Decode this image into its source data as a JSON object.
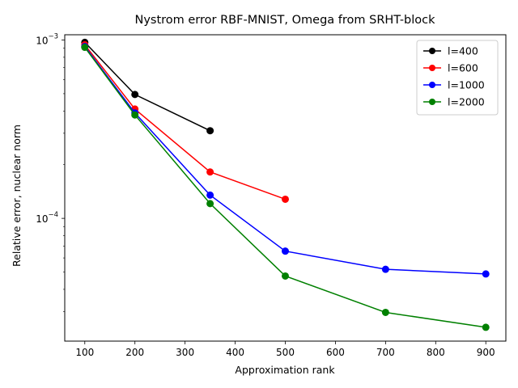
{
  "chart_data": {
    "type": "line",
    "title": "Nystrom error RBF-MNIST, Omega from SRHT-block",
    "xlabel": "Approximation rank",
    "ylabel": "Relative error, nuclear norm",
    "xlim": [
      60,
      940
    ],
    "ylim": [
      2.05e-05,
      0.00107
    ],
    "yscale": "log",
    "x_ticks": [
      100,
      200,
      300,
      400,
      500,
      600,
      700,
      800,
      900
    ],
    "y_ticks": [
      {
        "value": 0.0001,
        "base": "10",
        "exp": "−4"
      },
      {
        "value": 0.001,
        "base": "10",
        "exp": "−3"
      }
    ],
    "legend_position": "top-right",
    "series": [
      {
        "name": "l=400",
        "color": "#000000",
        "x": [
          100,
          200,
          350
        ],
        "y": [
          0.00097,
          0.000495,
          0.00031
        ]
      },
      {
        "name": "l=600",
        "color": "#ff0000",
        "x": [
          100,
          200,
          350,
          500
        ],
        "y": [
          0.00094,
          0.00041,
          0.000182,
          0.000128
        ]
      },
      {
        "name": "l=1000",
        "color": "#0000ff",
        "x": [
          100,
          200,
          350,
          500,
          700,
          900
        ],
        "y": [
          0.00092,
          0.00039,
          0.000135,
          6.55e-05,
          5.18e-05,
          4.88e-05
        ]
      },
      {
        "name": "l=2000",
        "color": "#008000",
        "x": [
          100,
          200,
          350,
          500,
          700,
          900
        ],
        "y": [
          0.00091,
          0.00038,
          0.000121,
          4.75e-05,
          2.97e-05,
          2.45e-05
        ]
      }
    ]
  }
}
